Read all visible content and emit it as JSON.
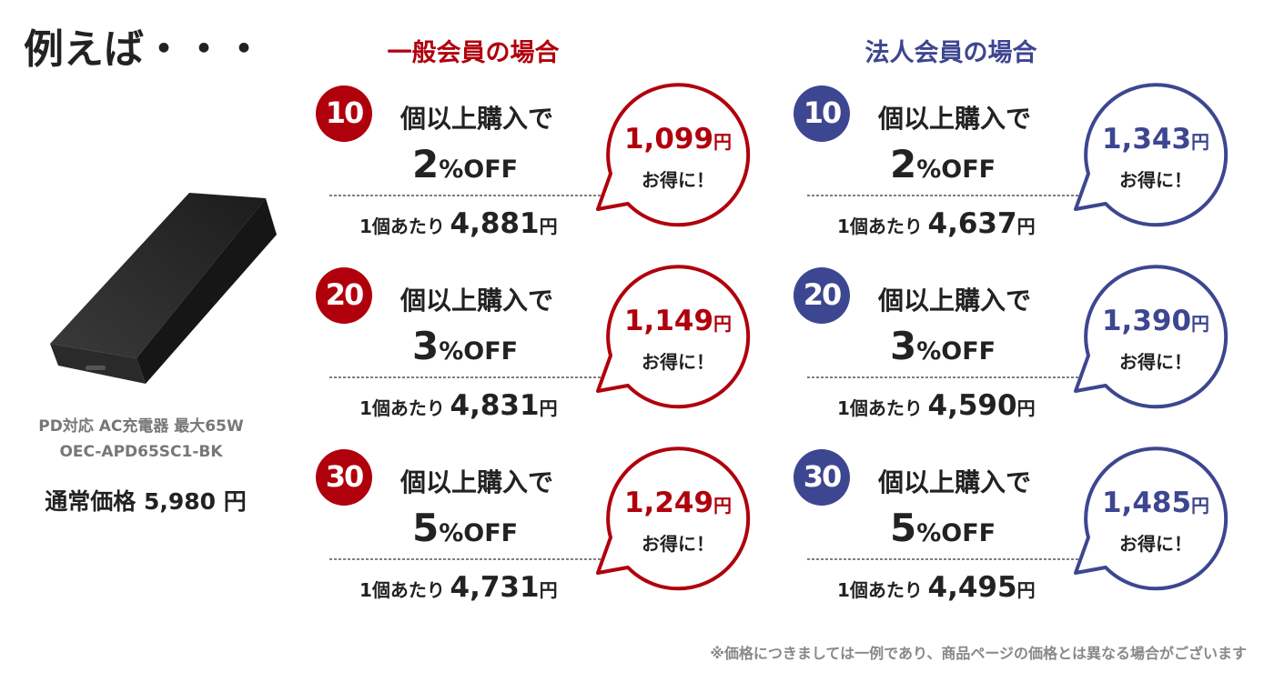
{
  "heading": "例えば・・・",
  "product": {
    "name": "PD対応 AC充電器 最大65W",
    "model": "OEC-APD65SC1-BK",
    "price_label": "通常価格",
    "price": "5,980",
    "price_unit": "円"
  },
  "sections": [
    {
      "title": "一般会員の場合",
      "color": "#b0000c",
      "tiers": [
        {
          "qty": "10",
          "qty_text": "個以上購入で",
          "discount": "2",
          "discount_unit": "%OFF",
          "unit_label": "1個あたり",
          "unit_price": "4,881",
          "unit_price_unit": "円",
          "saving": "1,099",
          "saving_unit": "円",
          "saving_text": "お得に！"
        },
        {
          "qty": "20",
          "qty_text": "個以上購入で",
          "discount": "3",
          "discount_unit": "%OFF",
          "unit_label": "1個あたり",
          "unit_price": "4,831",
          "unit_price_unit": "円",
          "saving": "1,149",
          "saving_unit": "円",
          "saving_text": "お得に！"
        },
        {
          "qty": "30",
          "qty_text": "個以上購入で",
          "discount": "5",
          "discount_unit": "%OFF",
          "unit_label": "1個あたり",
          "unit_price": "4,731",
          "unit_price_unit": "円",
          "saving": "1,249",
          "saving_unit": "円",
          "saving_text": "お得に！"
        }
      ]
    },
    {
      "title": "法人会員の場合",
      "color": "#3d4690",
      "tiers": [
        {
          "qty": "10",
          "qty_text": "個以上購入で",
          "discount": "2",
          "discount_unit": "%OFF",
          "unit_label": "1個あたり",
          "unit_price": "4,637",
          "unit_price_unit": "円",
          "saving": "1,343",
          "saving_unit": "円",
          "saving_text": "お得に！"
        },
        {
          "qty": "20",
          "qty_text": "個以上購入で",
          "discount": "3",
          "discount_unit": "%OFF",
          "unit_label": "1個あたり",
          "unit_price": "4,590",
          "unit_price_unit": "円",
          "saving": "1,390",
          "saving_unit": "円",
          "saving_text": "お得に！"
        },
        {
          "qty": "30",
          "qty_text": "個以上購入で",
          "discount": "5",
          "discount_unit": "%OFF",
          "unit_label": "1個あたり",
          "unit_price": "4,495",
          "unit_price_unit": "円",
          "saving": "1,485",
          "saving_unit": "円",
          "saving_text": "お得に！"
        }
      ]
    }
  ],
  "footnote": "※価格につきましては一例であり、商品ページの価格とは異なる場合がございます"
}
